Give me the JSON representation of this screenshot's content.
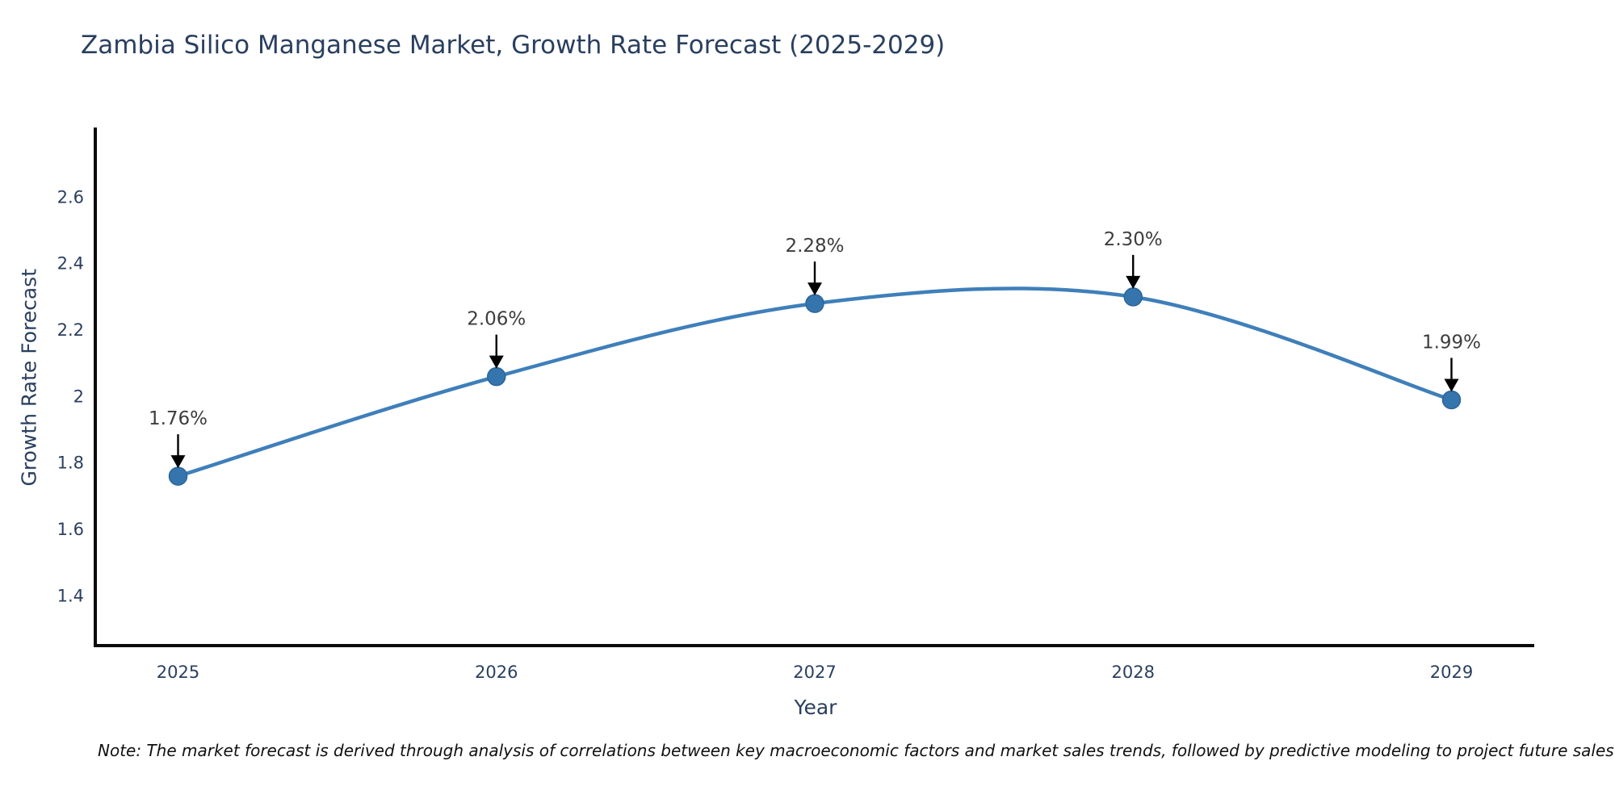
{
  "title": "Zambia Silico Manganese Market, Growth Rate Forecast (2025-2029)",
  "footnote": "Note: The market forecast is derived through analysis of correlations between key macroeconomic factors and market sales trends, followed by predictive modeling to project future sales",
  "chart_data": {
    "type": "line",
    "title": "Zambia Silico Manganese Market, Growth Rate Forecast (2025-2029)",
    "xlabel": "Year",
    "ylabel": "Growth Rate Forecast",
    "x": [
      2025,
      2026,
      2027,
      2028,
      2029
    ],
    "y": [
      1.76,
      2.06,
      2.28,
      2.3,
      1.99
    ],
    "point_labels": [
      "1.76%",
      "2.06%",
      "2.28%",
      "2.30%",
      "1.99%"
    ],
    "xtick_labels": [
      "2025",
      "2026",
      "2027",
      "2028",
      "2029"
    ],
    "ytick_values": [
      1.4,
      1.6,
      1.8,
      2,
      2.2,
      2.4,
      2.6
    ],
    "ytick_labels": [
      "1.4",
      "1.6",
      "1.8",
      "2",
      "2.2",
      "2.4",
      "2.6"
    ],
    "xlim": [
      2024.74,
      2029.26
    ],
    "ylim": [
      1.25,
      2.81
    ],
    "line_shape": "spline",
    "grid": false,
    "legend_position": "none",
    "colors": {
      "line": "#3f7fba",
      "marker": "#3575ae",
      "marker_edge": "#2d6497",
      "annotation_text": "#3d3d3d",
      "arrow": "#000000",
      "axis_line": "#0a0a0a",
      "tick_text": "#2a3f5f",
      "title_text": "#2a3f5f"
    }
  }
}
